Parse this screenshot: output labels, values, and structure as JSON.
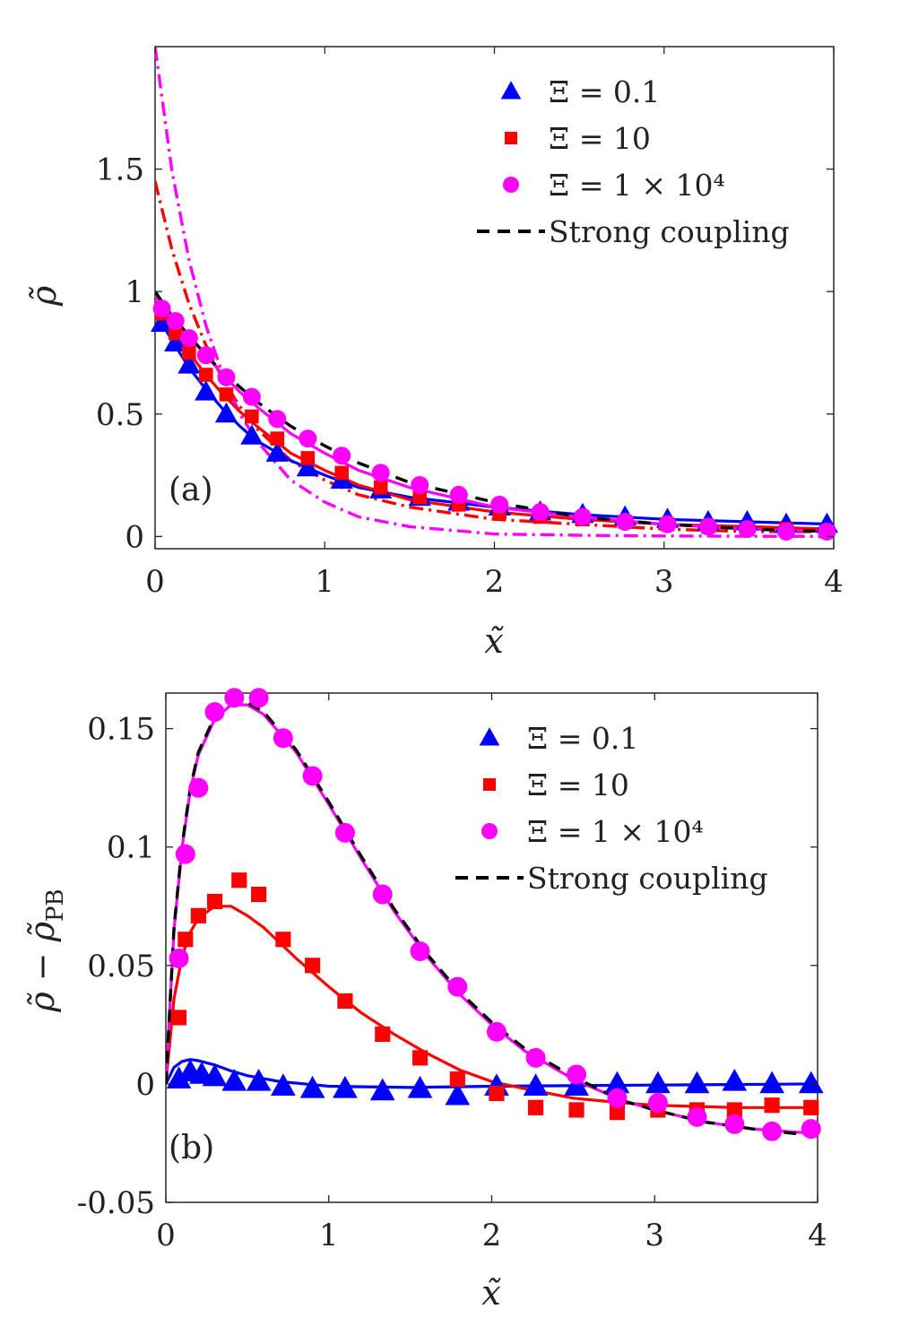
{
  "colors": {
    "xi_0_1": "#0000ff",
    "xi_10": "#ff0000",
    "xi_1e4": "#ff00ff",
    "strong_coupling": "#000000"
  },
  "chart_data": [
    {
      "type": "line",
      "panel_label": "(a)",
      "xlabel": "x̃",
      "ylabel": "ρ̃",
      "xlim": [
        0,
        4
      ],
      "ylim": [
        -0.05,
        2.0
      ],
      "xticks": [
        0,
        1,
        2,
        3,
        4
      ],
      "xtick_labels": [
        "0",
        "1",
        "2",
        "3",
        "4"
      ],
      "yticks": [
        0,
        0.5,
        1,
        1.5
      ],
      "ytick_labels": [
        "0",
        "0.5",
        "1",
        "1.5"
      ],
      "legend": {
        "position": "top-right",
        "entries": [
          {
            "series": "xi_0_1",
            "label": "Ξ = 0.1",
            "marker": "triangle"
          },
          {
            "series": "xi_10",
            "label": "Ξ = 10",
            "marker": "square"
          },
          {
            "series": "xi_1e4",
            "label": "Ξ = 1 × 10⁴",
            "marker": "circle"
          },
          {
            "series": "strong",
            "label": "Strong coupling",
            "marker": "dashed"
          }
        ]
      },
      "scatter_series": [
        {
          "name": "xi_0_1",
          "marker": "triangle",
          "x": [
            0.04,
            0.12,
            0.2,
            0.3,
            0.42,
            0.57,
            0.72,
            0.9,
            1.1,
            1.33,
            1.56,
            1.79,
            2.03,
            2.27,
            2.52,
            2.77,
            3.02,
            3.26,
            3.49,
            3.72,
            3.96
          ],
          "y": [
            0.87,
            0.79,
            0.7,
            0.59,
            0.5,
            0.41,
            0.34,
            0.28,
            0.23,
            0.19,
            0.16,
            0.14,
            0.12,
            0.1,
            0.09,
            0.08,
            0.07,
            0.06,
            0.06,
            0.05,
            0.05
          ]
        },
        {
          "name": "xi_10",
          "marker": "square",
          "x": [
            0.04,
            0.12,
            0.2,
            0.3,
            0.42,
            0.57,
            0.72,
            0.9,
            1.1,
            1.33,
            1.56,
            1.79,
            2.03,
            2.27,
            2.52,
            2.77,
            3.02,
            3.26,
            3.49,
            3.72,
            3.96
          ],
          "y": [
            0.91,
            0.83,
            0.75,
            0.66,
            0.58,
            0.49,
            0.4,
            0.32,
            0.26,
            0.2,
            0.16,
            0.13,
            0.1,
            0.08,
            0.07,
            0.06,
            0.05,
            0.04,
            0.03,
            0.03,
            0.02
          ]
        },
        {
          "name": "xi_1e4",
          "marker": "circle",
          "x": [
            0.04,
            0.12,
            0.2,
            0.3,
            0.42,
            0.57,
            0.72,
            0.9,
            1.1,
            1.33,
            1.56,
            1.79,
            2.03,
            2.27,
            2.52,
            2.77,
            3.02,
            3.26,
            3.49,
            3.72,
            3.96
          ],
          "y": [
            0.93,
            0.88,
            0.81,
            0.74,
            0.65,
            0.57,
            0.48,
            0.4,
            0.33,
            0.26,
            0.21,
            0.17,
            0.13,
            0.1,
            0.08,
            0.06,
            0.05,
            0.04,
            0.03,
            0.02,
            0.02
          ]
        }
      ],
      "curves": [
        {
          "name": "xi_0_1",
          "style": "solid",
          "x": [
            0,
            0.1,
            0.2,
            0.3,
            0.4,
            0.5,
            0.6,
            0.8,
            1.0,
            1.2,
            1.5,
            2.0,
            2.5,
            3.0,
            3.5,
            4.0
          ],
          "y": [
            0.92,
            0.8,
            0.69,
            0.6,
            0.52,
            0.45,
            0.39,
            0.31,
            0.25,
            0.2,
            0.16,
            0.12,
            0.09,
            0.07,
            0.06,
            0.05
          ]
        },
        {
          "name": "xi_10",
          "style": "solid",
          "x": [
            0,
            0.1,
            0.2,
            0.3,
            0.4,
            0.5,
            0.6,
            0.8,
            1.0,
            1.2,
            1.5,
            2.0,
            2.5,
            3.0,
            3.5,
            4.0
          ],
          "y": [
            0.96,
            0.85,
            0.75,
            0.66,
            0.58,
            0.51,
            0.45,
            0.34,
            0.27,
            0.21,
            0.15,
            0.1,
            0.07,
            0.05,
            0.04,
            0.03
          ]
        },
        {
          "name": "xi_1e4",
          "style": "solid",
          "x": [
            0,
            0.1,
            0.2,
            0.3,
            0.4,
            0.5,
            0.6,
            0.8,
            1.0,
            1.2,
            1.5,
            2.0,
            2.5,
            3.0,
            3.5,
            4.0
          ],
          "y": [
            0.98,
            0.9,
            0.82,
            0.74,
            0.66,
            0.59,
            0.53,
            0.42,
            0.34,
            0.27,
            0.2,
            0.12,
            0.08,
            0.05,
            0.03,
            0.02
          ]
        },
        {
          "name": "strong",
          "style": "dashed",
          "x": [
            0,
            0.1,
            0.2,
            0.3,
            0.4,
            0.5,
            0.6,
            0.8,
            1.0,
            1.2,
            1.5,
            2.0,
            2.5,
            3.0,
            3.5,
            4.0
          ],
          "y": [
            1.0,
            0.9,
            0.82,
            0.74,
            0.67,
            0.61,
            0.55,
            0.45,
            0.37,
            0.3,
            0.22,
            0.14,
            0.08,
            0.05,
            0.03,
            0.02
          ]
        },
        {
          "name": "xi_10",
          "style": "dashdot",
          "x": [
            0,
            0.1,
            0.2,
            0.3,
            0.4,
            0.5,
            0.6,
            0.8,
            1.0,
            1.2,
            1.5,
            2.0,
            2.5,
            3.0,
            3.5,
            4.0
          ],
          "y": [
            1.45,
            1.17,
            0.95,
            0.78,
            0.64,
            0.53,
            0.44,
            0.31,
            0.23,
            0.17,
            0.12,
            0.07,
            0.05,
            0.03,
            0.02,
            0.02
          ]
        },
        {
          "name": "xi_1e4",
          "style": "dashdot",
          "x": [
            0,
            0.1,
            0.2,
            0.3,
            0.4,
            0.5,
            0.6,
            0.8,
            1.0,
            1.2,
            1.5,
            2.0,
            2.5,
            3.0,
            3.5,
            4.0
          ],
          "y": [
            2.0,
            1.49,
            1.13,
            0.86,
            0.66,
            0.5,
            0.39,
            0.23,
            0.14,
            0.08,
            0.04,
            0.01,
            0.005,
            0.002,
            0.001,
            0.0
          ]
        }
      ]
    },
    {
      "type": "line",
      "panel_label": "(b)",
      "xlabel": "x̃",
      "ylabel": "ρ̃ − ρ̃",
      "ylabel_subscript": "PB",
      "xlim": [
        0,
        4
      ],
      "ylim": [
        -0.05,
        0.165
      ],
      "xticks": [
        0,
        1,
        2,
        3,
        4
      ],
      "xtick_labels": [
        "0",
        "1",
        "2",
        "3",
        "4"
      ],
      "yticks": [
        -0.05,
        0,
        0.05,
        0.1,
        0.15
      ],
      "ytick_labels": [
        "-0.05",
        "0",
        "0.05",
        "0.1",
        "0.15"
      ],
      "legend": {
        "position": "top-right",
        "entries": [
          {
            "series": "xi_0_1",
            "label": "Ξ = 0.1",
            "marker": "triangle"
          },
          {
            "series": "xi_10",
            "label": "Ξ = 10",
            "marker": "square"
          },
          {
            "series": "xi_1e4",
            "label": "Ξ = 1 × 10⁴",
            "marker": "circle"
          },
          {
            "series": "strong",
            "label": "Strong coupling",
            "marker": "dashed"
          }
        ]
      },
      "scatter_series": [
        {
          "name": "xi_0_1",
          "marker": "triangle",
          "x": [
            0.08,
            0.15,
            0.22,
            0.3,
            0.42,
            0.57,
            0.72,
            0.9,
            1.1,
            1.33,
            1.56,
            1.79,
            2.03,
            2.27,
            2.52,
            2.77,
            3.02,
            3.26,
            3.49,
            3.72,
            3.96
          ],
          "y": [
            0.002,
            0.005,
            0.004,
            0.003,
            0.001,
            0.001,
            -0.001,
            -0.002,
            -0.002,
            -0.003,
            -0.002,
            -0.005,
            -0.001,
            -0.001,
            -0.001,
            0.0,
            0.0,
            0.0,
            0.001,
            0.0,
            0.0
          ]
        },
        {
          "name": "xi_10",
          "marker": "square",
          "x": [
            0.08,
            0.12,
            0.2,
            0.3,
            0.45,
            0.57,
            0.72,
            0.9,
            1.1,
            1.33,
            1.56,
            1.79,
            2.03,
            2.27,
            2.52,
            2.77,
            3.02,
            3.26,
            3.49,
            3.72,
            3.96
          ],
          "y": [
            0.028,
            0.061,
            0.071,
            0.077,
            0.086,
            0.08,
            0.061,
            0.05,
            0.035,
            0.021,
            0.011,
            0.002,
            -0.004,
            -0.01,
            -0.011,
            -0.012,
            -0.011,
            -0.011,
            -0.011,
            -0.009,
            -0.01
          ]
        },
        {
          "name": "xi_1e4",
          "marker": "circle",
          "x": [
            0.08,
            0.12,
            0.2,
            0.3,
            0.42,
            0.57,
            0.72,
            0.9,
            1.1,
            1.33,
            1.56,
            1.79,
            2.03,
            2.27,
            2.52,
            2.77,
            3.02,
            3.26,
            3.49,
            3.72,
            3.96
          ],
          "y": [
            0.053,
            0.097,
            0.125,
            0.157,
            0.163,
            0.163,
            0.146,
            0.13,
            0.106,
            0.08,
            0.056,
            0.041,
            0.022,
            0.011,
            0.004,
            -0.006,
            -0.008,
            -0.014,
            -0.017,
            -0.02,
            -0.019
          ]
        }
      ],
      "curves": [
        {
          "name": "xi_0_1",
          "style": "solid",
          "x": [
            0,
            0.05,
            0.1,
            0.15,
            0.2,
            0.3,
            0.4,
            0.5,
            0.7,
            1.0,
            1.5,
            2.0,
            3.0,
            4.0
          ],
          "y": [
            0,
            0.007,
            0.0095,
            0.0103,
            0.0098,
            0.008,
            0.0055,
            0.0035,
            0.001,
            -0.001,
            -0.0015,
            -0.001,
            -0.0005,
            0
          ]
        },
        {
          "name": "xi_10",
          "style": "solid",
          "x": [
            0,
            0.05,
            0.1,
            0.15,
            0.2,
            0.3,
            0.4,
            0.5,
            0.6,
            0.8,
            1.0,
            1.2,
            1.4,
            1.6,
            1.8,
            2.0,
            2.2,
            2.5,
            2.8,
            3.0,
            3.5,
            4.0
          ],
          "y": [
            0,
            0.036,
            0.054,
            0.064,
            0.07,
            0.075,
            0.075,
            0.071,
            0.066,
            0.053,
            0.041,
            0.03,
            0.021,
            0.013,
            0.006,
            0.001,
            -0.002,
            -0.006,
            -0.008,
            -0.009,
            -0.01,
            -0.01
          ]
        },
        {
          "name": "xi_1e4",
          "style": "solid",
          "x": [
            0,
            0.05,
            0.1,
            0.15,
            0.2,
            0.3,
            0.4,
            0.5,
            0.6,
            0.8,
            1.0,
            1.2,
            1.4,
            1.6,
            1.8,
            2.0,
            2.2,
            2.5,
            2.8,
            3.0,
            3.3,
            3.6,
            4.0
          ],
          "y": [
            0,
            0.065,
            0.1,
            0.124,
            0.139,
            0.154,
            0.16,
            0.16,
            0.156,
            0.14,
            0.118,
            0.095,
            0.073,
            0.054,
            0.038,
            0.025,
            0.014,
            0.002,
            -0.007,
            -0.011,
            -0.016,
            -0.019,
            -0.021
          ]
        },
        {
          "name": "strong",
          "style": "dashed",
          "x": [
            0,
            0.05,
            0.1,
            0.15,
            0.2,
            0.3,
            0.4,
            0.5,
            0.6,
            0.8,
            1.0,
            1.2,
            1.4,
            1.6,
            1.8,
            2.0,
            2.2,
            2.5,
            2.8,
            3.0,
            3.3,
            3.6,
            4.0
          ],
          "y": [
            0,
            0.066,
            0.101,
            0.125,
            0.14,
            0.155,
            0.161,
            0.161,
            0.157,
            0.141,
            0.119,
            0.096,
            0.074,
            0.055,
            0.039,
            0.026,
            0.015,
            0.003,
            -0.007,
            -0.011,
            -0.016,
            -0.019,
            -0.022
          ]
        }
      ]
    }
  ]
}
